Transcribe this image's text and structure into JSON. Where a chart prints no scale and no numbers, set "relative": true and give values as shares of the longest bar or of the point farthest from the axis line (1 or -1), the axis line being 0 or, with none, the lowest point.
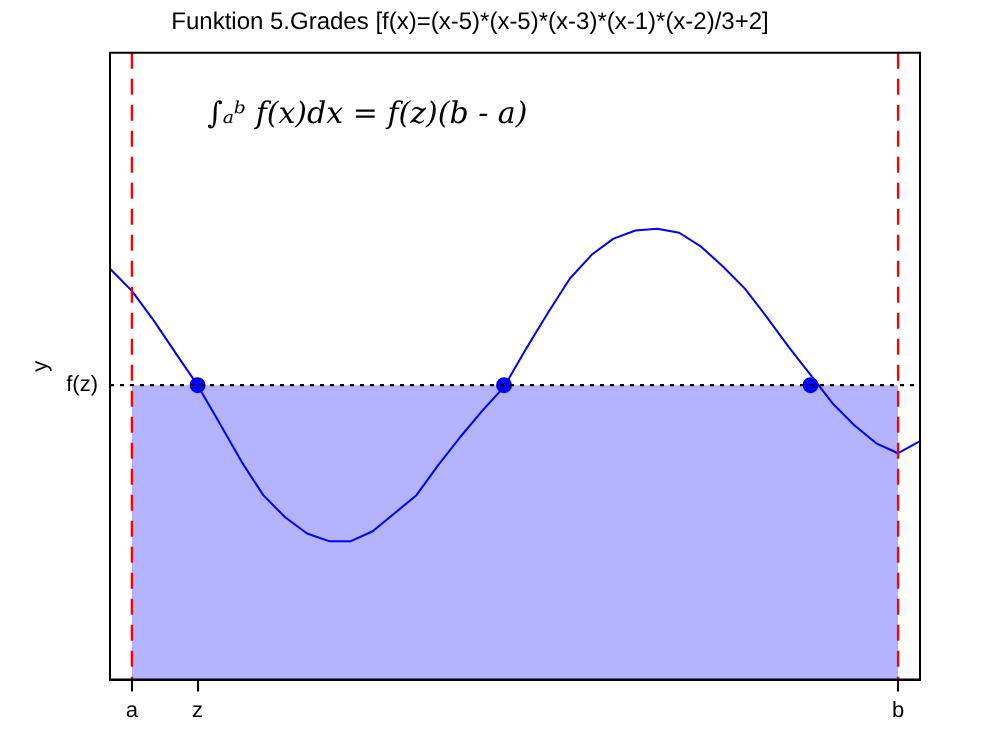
{
  "chart_data": {
    "type": "line",
    "title": "Funktion 5.Grades [f(x)=(x-5)*(x-5)*(x-3)*(x-1)*(x-2)/3+2]",
    "ylabel": "y",
    "relative": true,
    "annotations": [
      "∫ₐᵇ f(x)dx = f(z)(b - a)"
    ],
    "categories": [
      null,
      "a",
      null,
      null,
      "z",
      null,
      null,
      null,
      null,
      null,
      null,
      null,
      null,
      null,
      null,
      null,
      null,
      null,
      null,
      null,
      null,
      null,
      null,
      null,
      null,
      null,
      null,
      null,
      null,
      null,
      null,
      null,
      null,
      null,
      null,
      null,
      "b",
      null
    ],
    "series": [
      {
        "type": "area",
        "color": "#b3b3ff",
        "values": [
          null,
          0.653,
          0.653,
          0.653,
          0.653,
          0.653,
          0.653,
          0.653,
          0.653,
          0.653,
          0.653,
          0.653,
          0.653,
          0.653,
          0.653,
          0.653,
          0.653,
          0.653,
          0.653,
          0.653,
          0.653,
          0.653,
          0.653,
          0.653,
          0.653,
          0.653,
          0.653,
          0.653,
          0.653,
          0.653,
          0.653,
          0.653,
          0.653,
          0.653,
          0.653,
          0.653,
          0.653,
          null
        ]
      },
      {
        "type": "line",
        "color": "#0000ff",
        "values": [
          0.911,
          0.862,
          0.796,
          0.724,
          0.653,
          0.569,
          0.484,
          0.409,
          0.36,
          0.324,
          0.307,
          0.307,
          0.329,
          0.369,
          0.409,
          0.476,
          0.538,
          0.596,
          0.649,
          0.733,
          0.813,
          0.889,
          0.942,
          0.978,
          0.996,
          1,
          0.991,
          0.96,
          0.916,
          0.867,
          0.804,
          0.738,
          0.676,
          0.613,
          0.564,
          0.524,
          0.502,
          0.529
        ]
      },
      {
        "type": "scatter",
        "color": "#0000ff",
        "marker": "circle",
        "values": [
          null,
          null,
          null,
          null,
          0.653,
          null,
          null,
          null,
          null,
          null,
          null,
          null,
          null,
          null,
          null,
          null,
          null,
          null,
          0.653,
          null,
          null,
          null,
          null,
          null,
          null,
          null,
          null,
          null,
          null,
          null,
          null,
          null,
          0.653,
          null,
          null,
          null,
          null,
          null
        ]
      }
    ],
    "ref_lines": [
      {
        "axis": "x",
        "value": "a",
        "color": "#ff0000",
        "line_style": "dashed"
      },
      {
        "axis": "x",
        "value": "b",
        "color": "#ff0000",
        "line_style": "dashed"
      },
      {
        "axis": "y",
        "value": 0.653,
        "label": "f(z)",
        "color": "#000000",
        "line_style": "dotted"
      }
    ],
    "grid": false,
    "legend": false
  }
}
